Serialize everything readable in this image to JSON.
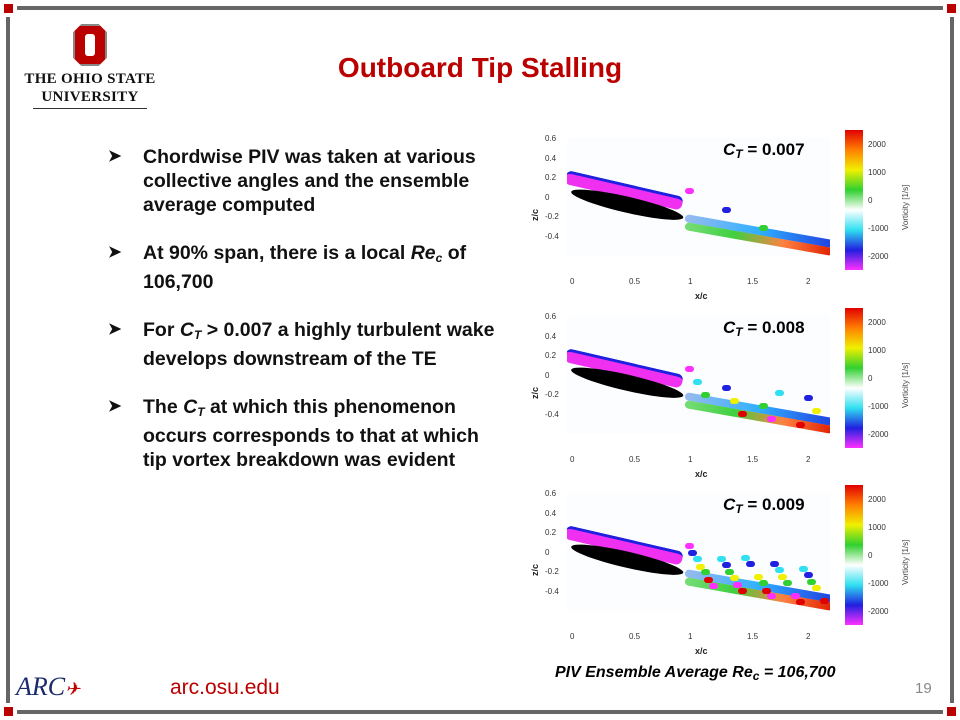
{
  "logo": {
    "line1": "THE OHIO STATE",
    "line2": "UNIVERSITY"
  },
  "title": "Outboard Tip Stalling",
  "bullets": [
    {
      "html": "Chordwise PIV was taken at various collective angles and the ensemble average computed"
    },
    {
      "html": "At 90% span, there is a local <i>Re<sub>c</sub></i> of 106,700"
    },
    {
      "html": "For <i>C<sub>T</sub></i> &gt; 0.007 a highly turbulent wake develops downstream of the TE"
    },
    {
      "html": "The <i>C<sub>T</sub></i> at which this phenomenon occurs corresponds to that at which tip vortex breakdown was evident"
    }
  ],
  "plots": [
    {
      "ct_label": "C",
      "ct_sub": "T",
      "ct_value": " = 0.007",
      "turbulence": 0.1
    },
    {
      "ct_label": "C",
      "ct_sub": "T",
      "ct_value": " = 0.008",
      "turbulence": 0.4
    },
    {
      "ct_label": "C",
      "ct_sub": "T",
      "ct_value": " = 0.009",
      "turbulence": 1.0
    }
  ],
  "axes": {
    "xlabel": "x/c",
    "ylabel": "z/c",
    "xticks": [
      "0",
      "0.5",
      "1",
      "1.5",
      "2"
    ],
    "yticks": [
      "0.6",
      "0.4",
      "0.2",
      "0",
      "-0.2",
      "-0.4"
    ],
    "cbar_ticks": [
      "2000",
      "1000",
      "0",
      "-1000",
      "-2000"
    ],
    "cbar_label": "Vorticity [1/s]"
  },
  "caption": {
    "pre": "PIV Ensemble Average Re",
    "sub": "c",
    "post": " = 106,700"
  },
  "footer": {
    "url": "arc.osu.edu",
    "page": "19",
    "arc_logo": "ARC"
  }
}
